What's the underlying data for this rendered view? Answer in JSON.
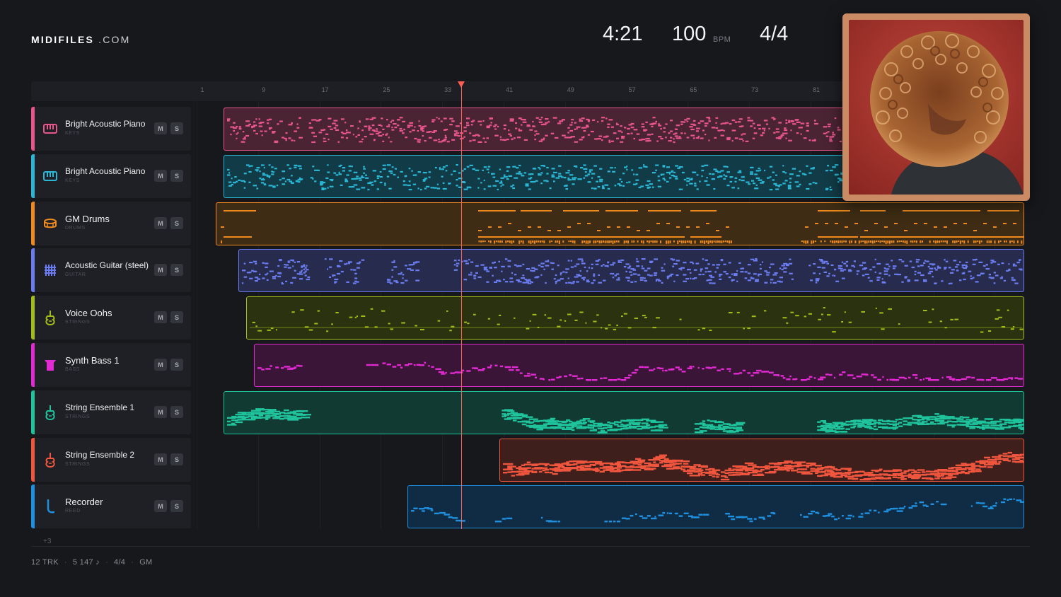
{
  "brand": {
    "name_bold": "MIDIFILES",
    "name_suffix": ".COM"
  },
  "stats": {
    "duration": "4:21",
    "tempo": "100",
    "tempo_unit": "BPM",
    "time_signature": "4/4"
  },
  "ruler": {
    "bars": [
      "1",
      "9",
      "17",
      "25",
      "33",
      "41",
      "49",
      "57",
      "65",
      "73",
      "81"
    ]
  },
  "playhead": {
    "bar": 34
  },
  "mute_label": "M",
  "solo_label": "S",
  "tracks": [
    {
      "name": "Bright Acoustic Piano",
      "category": "KEYS",
      "color": "#e8558a",
      "fill": "#4a2433",
      "icon": "keys-icon",
      "clip_start_bar": 3,
      "clip_end_bar": 109
    },
    {
      "name": "Bright Acoustic Piano",
      "category": "KEYS",
      "color": "#2ab6d4",
      "fill": "#113b46",
      "icon": "keys-icon",
      "clip_start_bar": 3,
      "clip_end_bar": 109
    },
    {
      "name": "GM Drums",
      "category": "DRUMS",
      "color": "#f08a1e",
      "fill": "#3e2d14",
      "icon": "drum-icon",
      "clip_start_bar": 2,
      "clip_end_bar": 133
    },
    {
      "name": "Acoustic Guitar (steel)",
      "category": "GUITAR",
      "color": "#6a7cf0",
      "fill": "#272c4e",
      "icon": "guitar-icon",
      "clip_start_bar": 5,
      "clip_end_bar": 127
    },
    {
      "name": "Voice Oohs",
      "category": "STRINGS",
      "color": "#a4bc18",
      "fill": "#2b3210",
      "icon": "strings-icon",
      "clip_start_bar": 6,
      "clip_end_bar": 139
    },
    {
      "name": "Synth Bass 1",
      "category": "BASS",
      "color": "#e22ad2",
      "fill": "#3b1538",
      "icon": "bass-icon",
      "clip_start_bar": 7,
      "clip_end_bar": 139
    },
    {
      "name": "String Ensemble 1",
      "category": "STRINGS",
      "color": "#1fc39c",
      "fill": "#113a32",
      "icon": "strings-icon",
      "clip_start_bar": 3,
      "clip_end_bar": 121
    },
    {
      "name": "String Ensemble 2",
      "category": "STRINGS",
      "color": "#f0553e",
      "fill": "#3e1f1c",
      "icon": "strings-icon",
      "clip_start_bar": 39,
      "clip_end_bar": 139
    },
    {
      "name": "Recorder",
      "category": "REED",
      "color": "#1f8fe0",
      "fill": "#102c44",
      "icon": "reed-icon",
      "clip_start_bar": 27,
      "clip_end_bar": 139
    }
  ],
  "more_tracks": "+3",
  "footer": {
    "tracks": "12 TRK",
    "notes": "5 147 ♪",
    "time_signature": "4/4",
    "standard": "GM"
  },
  "album_art": {
    "icon": "album-cover-image"
  }
}
